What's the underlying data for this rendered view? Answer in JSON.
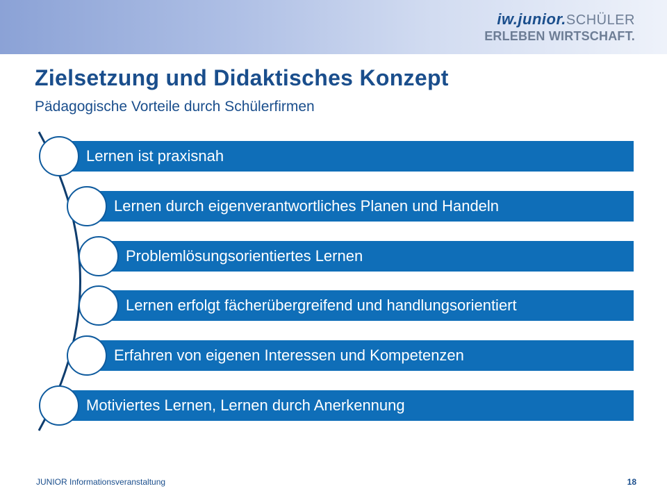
{
  "header": {
    "logo_brand": "iw.junior.",
    "logo_suffix": "SCHÜLER",
    "logo_tagline": "ERLEBEN WIRTSCHAFT."
  },
  "slide": {
    "title": "Zielsetzung und Didaktisches Konzept",
    "subtitle": "Pädagogische Vorteile durch Schülerfirmen"
  },
  "items": [
    {
      "label": "Lernen ist praxisnah"
    },
    {
      "label": "Lernen durch eigenverantwortliches Planen und Handeln"
    },
    {
      "label": "Problemlösungsorientiertes Lernen"
    },
    {
      "label": "Lernen erfolgt fächerübergreifend und handlungsorientiert"
    },
    {
      "label": "Erfahren von eigenen Interessen und Kompetenzen"
    },
    {
      "label": "Motiviertes Lernen, Lernen durch Anerkennung"
    }
  ],
  "footer": {
    "left": "JUNIOR Informationsveranstaltung",
    "page": "18"
  },
  "colors": {
    "bar": "#0f6eb8",
    "title": "#1a4e8c",
    "circle_border": "#0f5b9e"
  }
}
